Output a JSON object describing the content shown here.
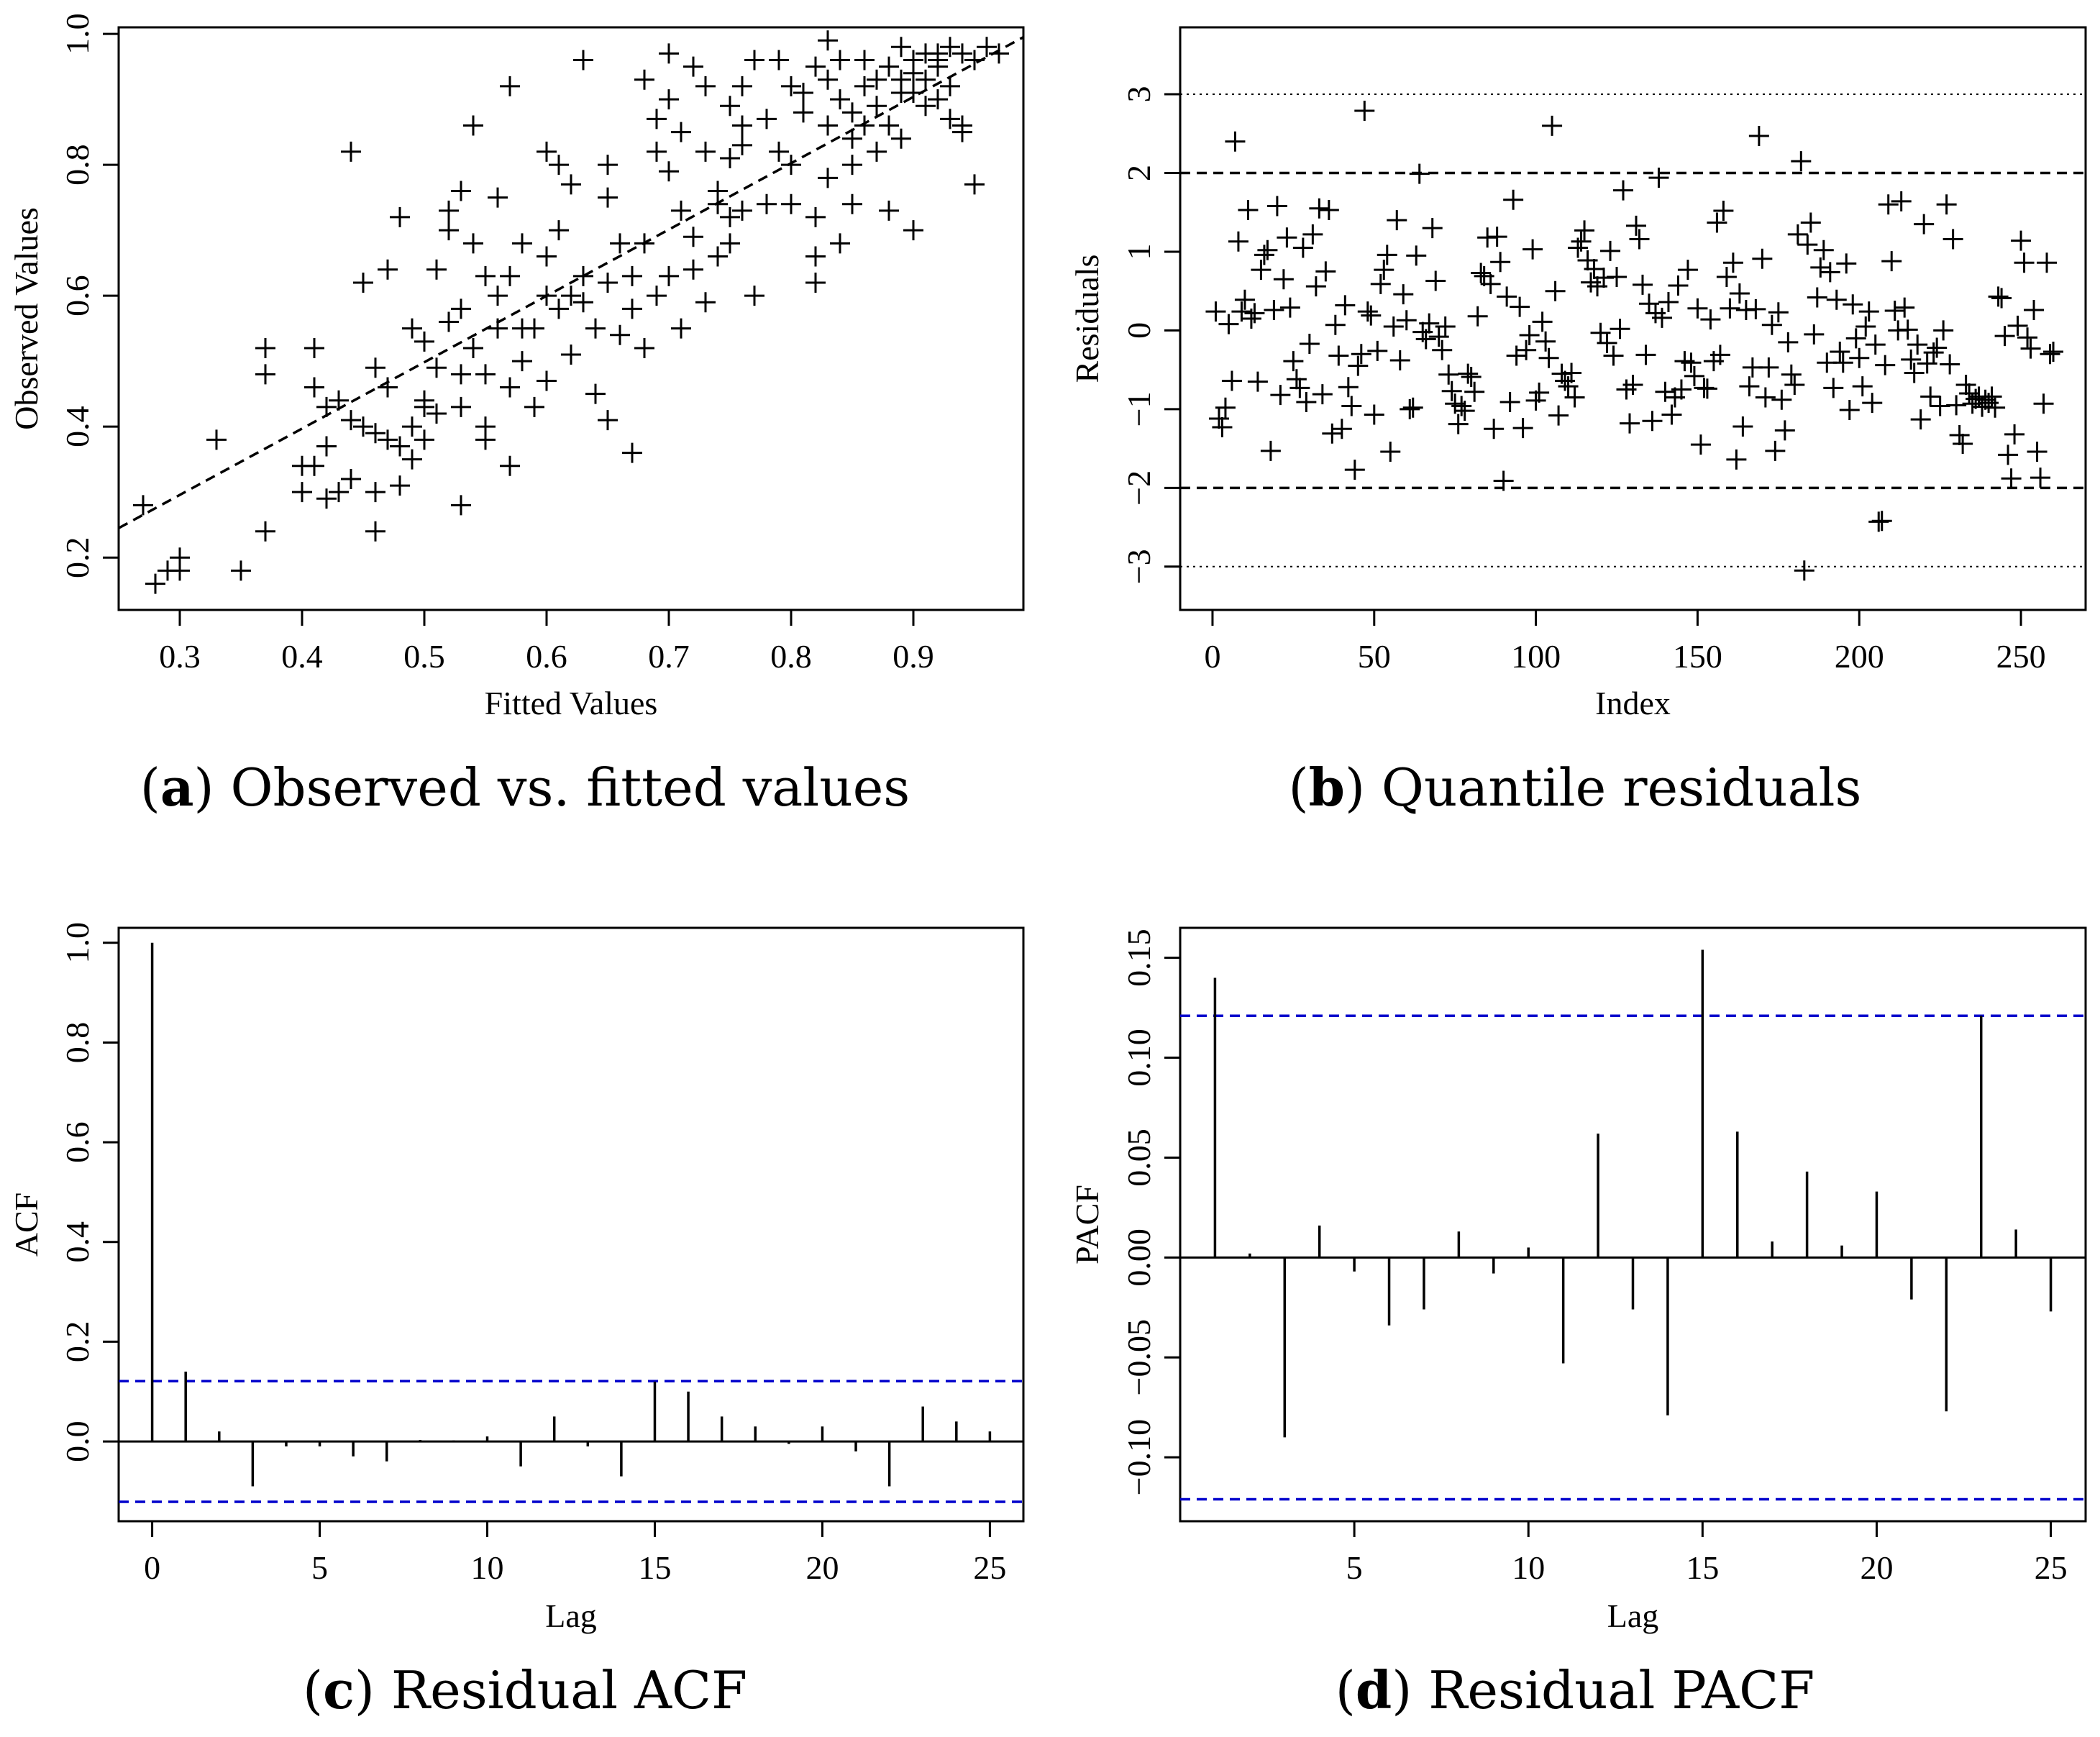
{
  "colors": {
    "axis": "#000000",
    "bound": "#0000cc",
    "background": "#ffffff"
  },
  "captions": [
    {
      "letter": "a",
      "text": " Observed vs. fitted values"
    },
    {
      "letter": "b",
      "text": " Quantile residuals"
    },
    {
      "letter": "c",
      "text": " Residual ACF"
    },
    {
      "letter": "d",
      "text": " Residual PACF"
    }
  ],
  "chart_data": [
    {
      "id": "a",
      "type": "scatter",
      "title": "",
      "xlabel": "Fitted Values",
      "ylabel": "Observed Values",
      "xlim": [
        0.25,
        0.99
      ],
      "ylim": [
        0.12,
        1.01
      ],
      "xticks": [
        0.3,
        0.4,
        0.5,
        0.6,
        0.7,
        0.8,
        0.9
      ],
      "xtick_labels": [
        "0.3",
        "0.4",
        "0.5",
        "0.6",
        "0.7",
        "0.8",
        "0.9"
      ],
      "yticks": [
        0.2,
        0.4,
        0.6,
        0.8,
        1.0
      ],
      "ytick_labels": [
        "0.2",
        "0.4",
        "0.6",
        "0.8",
        "1.0"
      ],
      "marker": "+",
      "reference_line": {
        "style": "dashed",
        "x": [
          0.25,
          0.99
        ],
        "y": [
          0.245,
          0.995
        ]
      },
      "points": [
        [
          0.27,
          0.28
        ],
        [
          0.28,
          0.16
        ],
        [
          0.29,
          0.18
        ],
        [
          0.3,
          0.18
        ],
        [
          0.3,
          0.2
        ],
        [
          0.33,
          0.38
        ],
        [
          0.35,
          0.18
        ],
        [
          0.37,
          0.24
        ],
        [
          0.37,
          0.48
        ],
        [
          0.37,
          0.52
        ],
        [
          0.4,
          0.3
        ],
        [
          0.4,
          0.34
        ],
        [
          0.41,
          0.46
        ],
        [
          0.41,
          0.52
        ],
        [
          0.41,
          0.34
        ],
        [
          0.42,
          0.29
        ],
        [
          0.42,
          0.37
        ],
        [
          0.42,
          0.43
        ],
        [
          0.43,
          0.3
        ],
        [
          0.43,
          0.44
        ],
        [
          0.44,
          0.32
        ],
        [
          0.44,
          0.82
        ],
        [
          0.44,
          0.41
        ],
        [
          0.45,
          0.62
        ],
        [
          0.45,
          0.4
        ],
        [
          0.46,
          0.24
        ],
        [
          0.46,
          0.3
        ],
        [
          0.46,
          0.39
        ],
        [
          0.46,
          0.49
        ],
        [
          0.47,
          0.38
        ],
        [
          0.47,
          0.46
        ],
        [
          0.47,
          0.64
        ],
        [
          0.48,
          0.31
        ],
        [
          0.48,
          0.72
        ],
        [
          0.48,
          0.37
        ],
        [
          0.49,
          0.4
        ],
        [
          0.49,
          0.35
        ],
        [
          0.49,
          0.55
        ],
        [
          0.5,
          0.44
        ],
        [
          0.5,
          0.53
        ],
        [
          0.5,
          0.38
        ],
        [
          0.5,
          0.43
        ],
        [
          0.51,
          0.42
        ],
        [
          0.51,
          0.49
        ],
        [
          0.51,
          0.64
        ],
        [
          0.52,
          0.7
        ],
        [
          0.52,
          0.73
        ],
        [
          0.52,
          0.56
        ],
        [
          0.53,
          0.48
        ],
        [
          0.53,
          0.58
        ],
        [
          0.53,
          0.43
        ],
        [
          0.53,
          0.28
        ],
        [
          0.53,
          0.76
        ],
        [
          0.54,
          0.52
        ],
        [
          0.54,
          0.86
        ],
        [
          0.54,
          0.68
        ],
        [
          0.55,
          0.38
        ],
        [
          0.55,
          0.63
        ],
        [
          0.55,
          0.48
        ],
        [
          0.55,
          0.4
        ],
        [
          0.56,
          0.6
        ],
        [
          0.56,
          0.55
        ],
        [
          0.56,
          0.75
        ],
        [
          0.57,
          0.46
        ],
        [
          0.57,
          0.92
        ],
        [
          0.57,
          0.34
        ],
        [
          0.57,
          0.63
        ],
        [
          0.58,
          0.68
        ],
        [
          0.58,
          0.55
        ],
        [
          0.58,
          0.5
        ],
        [
          0.59,
          0.43
        ],
        [
          0.59,
          0.55
        ],
        [
          0.6,
          0.82
        ],
        [
          0.6,
          0.6
        ],
        [
          0.6,
          0.47
        ],
        [
          0.6,
          0.66
        ],
        [
          0.61,
          0.8
        ],
        [
          0.61,
          0.58
        ],
        [
          0.61,
          0.7
        ],
        [
          0.62,
          0.6
        ],
        [
          0.62,
          0.51
        ],
        [
          0.62,
          0.77
        ],
        [
          0.63,
          0.96
        ],
        [
          0.63,
          0.63
        ],
        [
          0.63,
          0.59
        ],
        [
          0.64,
          0.55
        ],
        [
          0.64,
          0.45
        ],
        [
          0.65,
          0.75
        ],
        [
          0.65,
          0.8
        ],
        [
          0.65,
          0.41
        ],
        [
          0.65,
          0.62
        ],
        [
          0.66,
          0.68
        ],
        [
          0.66,
          0.54
        ],
        [
          0.67,
          0.58
        ],
        [
          0.67,
          0.36
        ],
        [
          0.67,
          0.63
        ],
        [
          0.68,
          0.68
        ],
        [
          0.68,
          0.93
        ],
        [
          0.68,
          0.52
        ],
        [
          0.69,
          0.82
        ],
        [
          0.69,
          0.87
        ],
        [
          0.69,
          0.6
        ],
        [
          0.7,
          0.79
        ],
        [
          0.7,
          0.9
        ],
        [
          0.7,
          0.97
        ],
        [
          0.7,
          0.63
        ],
        [
          0.71,
          0.85
        ],
        [
          0.71,
          0.73
        ],
        [
          0.71,
          0.55
        ],
        [
          0.72,
          0.95
        ],
        [
          0.72,
          0.69
        ],
        [
          0.72,
          0.64
        ],
        [
          0.73,
          0.82
        ],
        [
          0.73,
          0.92
        ],
        [
          0.73,
          0.59
        ],
        [
          0.74,
          0.76
        ],
        [
          0.74,
          0.66
        ],
        [
          0.74,
          0.74
        ],
        [
          0.75,
          0.89
        ],
        [
          0.75,
          0.81
        ],
        [
          0.75,
          0.68
        ],
        [
          0.75,
          0.72
        ],
        [
          0.76,
          0.92
        ],
        [
          0.76,
          0.86
        ],
        [
          0.76,
          0.83
        ],
        [
          0.76,
          0.73
        ],
        [
          0.77,
          0.96
        ],
        [
          0.77,
          0.6
        ],
        [
          0.78,
          0.87
        ],
        [
          0.78,
          0.74
        ],
        [
          0.79,
          0.96
        ],
        [
          0.79,
          0.82
        ],
        [
          0.8,
          0.8
        ],
        [
          0.8,
          0.74
        ],
        [
          0.8,
          0.92
        ],
        [
          0.81,
          0.91
        ],
        [
          0.81,
          0.88
        ],
        [
          0.82,
          0.62
        ],
        [
          0.82,
          0.66
        ],
        [
          0.82,
          0.95
        ],
        [
          0.82,
          0.72
        ],
        [
          0.83,
          0.99
        ],
        [
          0.83,
          0.93
        ],
        [
          0.83,
          0.86
        ],
        [
          0.83,
          0.78
        ],
        [
          0.84,
          0.68
        ],
        [
          0.84,
          0.9
        ],
        [
          0.84,
          0.96
        ],
        [
          0.85,
          0.8
        ],
        [
          0.85,
          0.88
        ],
        [
          0.85,
          0.74
        ],
        [
          0.85,
          0.84
        ],
        [
          0.86,
          0.96
        ],
        [
          0.86,
          0.92
        ],
        [
          0.86,
          0.86
        ],
        [
          0.87,
          0.89
        ],
        [
          0.87,
          0.93
        ],
        [
          0.87,
          0.82
        ],
        [
          0.88,
          0.95
        ],
        [
          0.88,
          0.86
        ],
        [
          0.88,
          0.73
        ],
        [
          0.89,
          0.98
        ],
        [
          0.89,
          0.84
        ],
        [
          0.89,
          0.93
        ],
        [
          0.89,
          0.91
        ],
        [
          0.9,
          0.96
        ],
        [
          0.9,
          0.94
        ],
        [
          0.9,
          0.7
        ],
        [
          0.9,
          0.91
        ],
        [
          0.91,
          0.97
        ],
        [
          0.91,
          0.89
        ],
        [
          0.91,
          0.93
        ],
        [
          0.92,
          0.97
        ],
        [
          0.92,
          0.95
        ],
        [
          0.92,
          0.9
        ],
        [
          0.92,
          0.96
        ],
        [
          0.93,
          0.98
        ],
        [
          0.93,
          0.92
        ],
        [
          0.93,
          0.87
        ],
        [
          0.94,
          0.85
        ],
        [
          0.94,
          0.86
        ],
        [
          0.94,
          0.97
        ],
        [
          0.95,
          0.77
        ],
        [
          0.95,
          0.96
        ],
        [
          0.96,
          0.98
        ],
        [
          0.97,
          0.97
        ]
      ]
    },
    {
      "id": "b",
      "type": "scatter",
      "title": "",
      "xlabel": "Index",
      "ylabel": "Residuals",
      "xlim": [
        -10,
        270
      ],
      "ylim": [
        -3.55,
        3.85
      ],
      "xticks": [
        0,
        50,
        100,
        150,
        200,
        250
      ],
      "xtick_labels": [
        "0",
        "50",
        "100",
        "150",
        "200",
        "250"
      ],
      "yticks": [
        -3,
        -2,
        -1,
        0,
        1,
        2,
        3
      ],
      "ytick_labels": [
        "−3",
        "−2",
        "−1",
        "0",
        "1",
        "2",
        "3"
      ],
      "marker": "+",
      "reference_lines": [
        {
          "y": 3,
          "style": "dotted"
        },
        {
          "y": 2,
          "style": "dashed"
        },
        {
          "y": -2,
          "style": "dashed"
        },
        {
          "y": -3,
          "style": "dotted"
        }
      ],
      "n": 260,
      "values": [
        0.24,
        -1.12,
        -1.23,
        -0.98,
        0.08,
        -0.64,
        2.4,
        1.13,
        0.24,
        0.39,
        1.53,
        0.15,
        0.22,
        -0.65,
        0.77,
        0.96,
        1.02,
        -1.53,
        0.26,
        1.58,
        -0.82,
        0.65,
        1.18,
        0.29,
        -0.39,
        -0.62,
        -0.73,
        1.05,
        -0.91,
        -0.17,
        1.22,
        0.56,
        1.55,
        -0.81,
        0.75,
        1.53,
        -1.31,
        0.07,
        -0.32,
        -1.25,
        0.32,
        -0.72,
        -0.96,
        -1.77,
        -0.45,
        -0.3,
        2.79,
        0.24,
        0.19,
        -1.07,
        -0.26,
        0.59,
        0.77,
        0.96,
        -1.54,
        0.05,
        1.4,
        -0.38,
        0.46,
        0.13,
        -1.0,
        -0.98,
        0.95,
        1.99,
        -0.02,
        -0.11,
        0.09,
        1.3,
        0.63,
        -0.08,
        -0.25,
        0.05,
        -0.56,
        -0.77,
        -0.93,
        -1.19,
        -0.96,
        -1.02,
        -0.55,
        -0.59,
        -0.78,
        0.18,
        0.73,
        0.69,
        1.18,
        0.59,
        -1.25,
        1.19,
        0.87,
        -1.91,
        0.43,
        -0.91,
        1.66,
        -0.32,
        0.3,
        -1.24,
        -0.25,
        -0.06,
        1.03,
        -0.89,
        -0.79,
        0.11,
        -0.14,
        -0.35,
        2.6,
        0.5,
        -1.08,
        -0.55,
        -0.64,
        -0.71,
        -0.54,
        -0.85,
        1.05,
        1.13,
        1.27,
        0.89,
        0.61,
        0.78,
        0.56,
        -0.03,
        0.67,
        -0.16,
        1.01,
        -0.32,
        0.68,
        0.02,
        1.78,
        -0.75,
        -1.18,
        -0.69,
        1.33,
        1.16,
        0.58,
        -0.31,
        0.34,
        -1.15,
        0.22,
        1.94,
        0.16,
        -0.78,
        0.36,
        -1.07,
        -0.85,
        0.57,
        -0.75,
        -0.39,
        0.77,
        -0.41,
        -0.58,
        0.28,
        -1.45,
        -0.73,
        -0.74,
        0.14,
        -0.39,
        1.37,
        -0.31,
        1.52,
        0.68,
        0.28,
        0.86,
        -1.64,
        0.47,
        -1.22,
        0.26,
        -0.71,
        -0.47,
        0.27,
        2.47,
        0.91,
        -0.85,
        -0.47,
        0.07,
        -1.53,
        0.23,
        -0.88,
        -1.27,
        -0.15,
        -0.56,
        -0.69,
        1.22,
        2.15,
        -3.05,
        1.09,
        1.37,
        -0.05,
        0.42,
        0.8,
        1.02,
        -0.41,
        0.74,
        -0.73,
        0.39,
        -0.27,
        -0.41,
        0.85,
        -1.01,
        0.33,
        -0.1,
        -0.35,
        -0.71,
        0.05,
        0.24,
        -0.92,
        -0.18,
        -2.43,
        -2.42,
        -0.44,
        1.6,
        0.88,
        0.25,
        0.0,
        1.64,
        0.29,
        0.01,
        -0.37,
        -0.54,
        -0.18,
        -1.13,
        1.35,
        -0.42,
        -0.84,
        -0.28,
        -0.22,
        -0.96,
        0.0,
        1.6,
        -0.43,
        1.16,
        -0.95,
        -1.33,
        -1.44,
        -0.69,
        -0.8,
        -0.93,
        -0.87,
        -0.84,
        -0.97,
        -0.88,
        -0.92,
        -0.84,
        -0.98,
        0.43,
        0.41,
        -0.07,
        -1.58,
        -1.88,
        -1.32,
        0.06,
        1.14,
        0.86,
        -0.09,
        -0.23,
        0.26,
        -1.54,
        -1.87,
        -0.93,
        0.86,
        -0.3,
        -0.27
      ]
    },
    {
      "id": "c",
      "type": "bar",
      "title": "",
      "xlabel": "Lag",
      "ylabel": "ACF",
      "xlim": [
        -1,
        26
      ],
      "ylim": [
        -0.16,
        1.03
      ],
      "xticks": [
        0,
        5,
        10,
        15,
        20,
        25
      ],
      "xtick_labels": [
        "0",
        "5",
        "10",
        "15",
        "20",
        "25"
      ],
      "yticks": [
        0.0,
        0.2,
        0.4,
        0.6,
        0.8,
        1.0
      ],
      "ytick_labels": [
        "0.0",
        "0.2",
        "0.4",
        "0.6",
        "0.8",
        "1.0"
      ],
      "bound": 0.121,
      "lags": [
        0,
        1,
        2,
        3,
        4,
        5,
        6,
        7,
        8,
        9,
        10,
        11,
        12,
        13,
        14,
        15,
        16,
        17,
        18,
        19,
        20,
        21,
        22,
        23,
        24,
        25
      ],
      "values": [
        1.0,
        0.14,
        0.02,
        -0.09,
        -0.01,
        -0.01,
        -0.03,
        -0.04,
        0.003,
        0.002,
        0.01,
        -0.05,
        0.05,
        -0.01,
        -0.07,
        0.12,
        0.1,
        0.05,
        0.03,
        -0.005,
        0.03,
        -0.02,
        -0.09,
        0.07,
        0.04,
        0.02
      ]
    },
    {
      "id": "d",
      "type": "bar",
      "title": "",
      "xlabel": "Lag",
      "ylabel": "PACF",
      "xlim": [
        0,
        26
      ],
      "ylim": [
        -0.132,
        0.165
      ],
      "xticks": [
        5,
        10,
        15,
        20,
        25
      ],
      "xtick_labels": [
        "5",
        "10",
        "15",
        "20",
        "25"
      ],
      "yticks": [
        -0.1,
        -0.05,
        0.0,
        0.05,
        0.1,
        0.15
      ],
      "ytick_labels": [
        "−0.10",
        "−0.05",
        "0.00",
        "0.05",
        "0.10",
        "0.15"
      ],
      "bound": 0.121,
      "lags": [
        1,
        2,
        3,
        4,
        5,
        6,
        7,
        8,
        9,
        10,
        11,
        12,
        13,
        14,
        15,
        16,
        17,
        18,
        19,
        20,
        21,
        22,
        23,
        24,
        25
      ],
      "values": [
        0.14,
        0.002,
        -0.09,
        0.016,
        -0.007,
        -0.034,
        -0.026,
        0.013,
        -0.008,
        0.005,
        -0.053,
        0.062,
        -0.026,
        -0.079,
        0.154,
        0.063,
        0.008,
        0.043,
        0.006,
        0.033,
        -0.021,
        -0.077,
        0.121,
        0.014,
        -0.027
      ]
    }
  ]
}
